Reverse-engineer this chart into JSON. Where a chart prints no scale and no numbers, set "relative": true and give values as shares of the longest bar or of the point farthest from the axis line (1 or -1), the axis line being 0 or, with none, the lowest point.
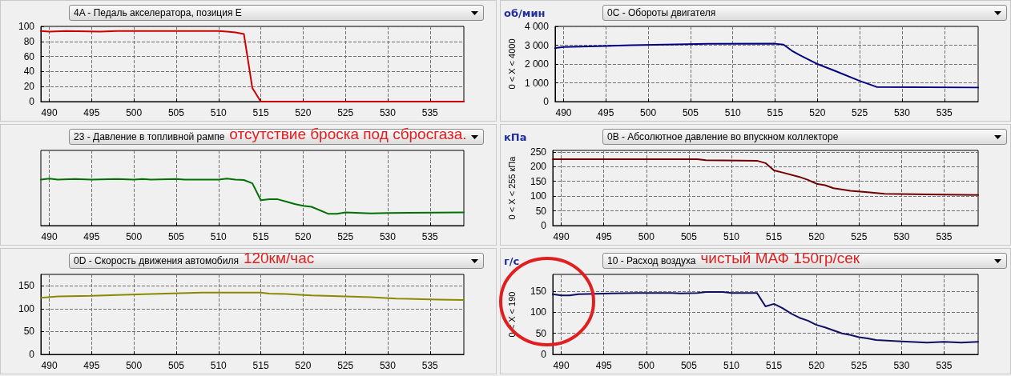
{
  "chart_data": [
    {
      "type": "line",
      "title": "4A - Педаль акселератора, позиция E",
      "color": "#cc0000",
      "line_style": "solid",
      "marker": "none",
      "grid": true,
      "xlim": [
        489,
        539
      ],
      "xticks": [
        490,
        495,
        500,
        505,
        510,
        515,
        520,
        525,
        530,
        535
      ],
      "ylim": [
        0,
        100
      ],
      "yticks": [
        0,
        20,
        40,
        60,
        80,
        100
      ],
      "x": [
        489,
        490,
        492,
        496,
        498,
        510,
        511,
        512,
        513,
        514,
        515,
        539
      ],
      "values": [
        94,
        93,
        94,
        93,
        94,
        94,
        93,
        92,
        90,
        18,
        0,
        0
      ]
    },
    {
      "type": "line",
      "title": "0C - Обороты двигателя",
      "subtitle": "об/мин",
      "ylabel": "0 < X < 4000",
      "color": "#000080",
      "line_style": "solid",
      "marker": "none",
      "grid": true,
      "xlim": [
        489,
        539
      ],
      "xticks": [
        490,
        495,
        500,
        505,
        510,
        515,
        520,
        525,
        530,
        535
      ],
      "ylim": [
        0,
        4000
      ],
      "yticks": [
        0,
        {
          "value": 1000,
          "label": "1 000"
        },
        {
          "value": 2000,
          "label": "2 000"
        },
        {
          "value": 3000,
          "label": "3 000"
        },
        {
          "value": 4000,
          "label": "4 000"
        }
      ],
      "x": [
        489,
        490,
        494,
        498,
        502,
        507,
        515,
        516,
        517,
        518,
        520,
        522,
        525,
        527,
        539
      ],
      "values": [
        2850,
        2900,
        2950,
        3000,
        3030,
        3070,
        3080,
        3030,
        2700,
        2450,
        2000,
        1650,
        1100,
        780,
        750
      ]
    },
    {
      "type": "line",
      "title": "23 - Давление в топливной рампе",
      "annotations": [
        "отсутствие броска под сбросгаза."
      ],
      "relative": true,
      "color": "#007000",
      "line_style": "solid",
      "marker": "none",
      "grid": "x",
      "xlim": [
        489,
        539
      ],
      "xticks": [
        490,
        495,
        500,
        505,
        510,
        515,
        520,
        525,
        530,
        535
      ],
      "x": [
        489,
        490,
        491,
        493,
        495,
        498,
        500,
        501,
        502,
        505,
        506,
        510,
        511,
        512,
        513,
        514,
        515,
        516,
        517,
        518,
        519,
        520,
        521,
        523,
        524,
        525,
        528,
        530,
        539
      ],
      "values": [
        0.98,
        1,
        0.98,
        0.99,
        0.98,
        0.99,
        0.98,
        0.99,
        0.98,
        0.99,
        0.98,
        0.98,
        1,
        0.98,
        0.97,
        0.9,
        0.54,
        0.56,
        0.56,
        0.51,
        0.46,
        0.42,
        0.4,
        0.25,
        0.25,
        0.28,
        0.26,
        0.27,
        0.28
      ]
    },
    {
      "type": "line",
      "title": "0B - Абсолютное давление во впускном коллекторе",
      "subtitle": "кПа",
      "ylabel": "0 < X < 255 кПа",
      "color": "#700000",
      "line_style": "solid",
      "marker": "none",
      "grid": true,
      "xlim": [
        489,
        539
      ],
      "xticks": [
        490,
        495,
        500,
        505,
        510,
        515,
        520,
        525,
        530,
        535
      ],
      "ylim": [
        0,
        255
      ],
      "yticks": [
        0,
        50,
        100,
        150,
        200,
        250
      ],
      "x": [
        489,
        506,
        507,
        513,
        514,
        515,
        516,
        518,
        519,
        520,
        521,
        522,
        524,
        526,
        528,
        533,
        539
      ],
      "values": [
        225,
        225,
        222,
        220,
        212,
        187,
        180,
        165,
        155,
        142,
        137,
        127,
        118,
        113,
        108,
        106,
        104
      ]
    },
    {
      "type": "line",
      "title": "0D - Скорость движения автомобиля",
      "annotations": [
        "120км/час"
      ],
      "color": "#8a8a00",
      "line_style": "solid",
      "marker": "none",
      "grid": true,
      "xlim": [
        489,
        539
      ],
      "xticks": [
        490,
        495,
        500,
        505,
        510,
        515,
        520,
        525,
        530,
        535
      ],
      "ylim": [
        0,
        175
      ],
      "yticks": [
        0,
        50,
        100,
        150
      ],
      "x": [
        489,
        491,
        495,
        498,
        502,
        508,
        515,
        516,
        518,
        520,
        521,
        525,
        528,
        531,
        536,
        539
      ],
      "values": [
        124,
        127,
        128,
        130,
        132,
        135,
        135,
        133,
        132,
        130,
        129,
        127,
        125,
        122,
        120,
        119
      ]
    },
    {
      "type": "line",
      "title": "10 - Расход воздуха",
      "subtitle": "г/с",
      "ylabel": "0 < X < 190",
      "annotations": [
        "чистый МАФ 150гр/сек"
      ],
      "color": "#101060",
      "line_style": "solid",
      "marker": "none",
      "grid": true,
      "xlim": [
        489,
        539
      ],
      "xticks": [
        490,
        495,
        500,
        505,
        510,
        515,
        520,
        525,
        530,
        535
      ],
      "ylim": [
        0,
        190
      ],
      "yticks": [
        0,
        50,
        100,
        150
      ],
      "x": [
        489,
        490,
        491,
        492,
        494,
        499,
        503,
        504,
        506,
        507,
        509,
        510,
        513,
        514,
        515,
        516,
        517,
        518,
        519,
        520,
        521,
        522,
        523,
        524,
        525,
        526,
        527,
        530,
        533,
        535,
        537,
        539
      ],
      "values": [
        143,
        140,
        140,
        143,
        144,
        146,
        146,
        145,
        146,
        148,
        148,
        146,
        146,
        114,
        120,
        110,
        97,
        87,
        80,
        70,
        64,
        57,
        50,
        46,
        41,
        38,
        34,
        31,
        28,
        30,
        28,
        30
      ]
    }
  ]
}
